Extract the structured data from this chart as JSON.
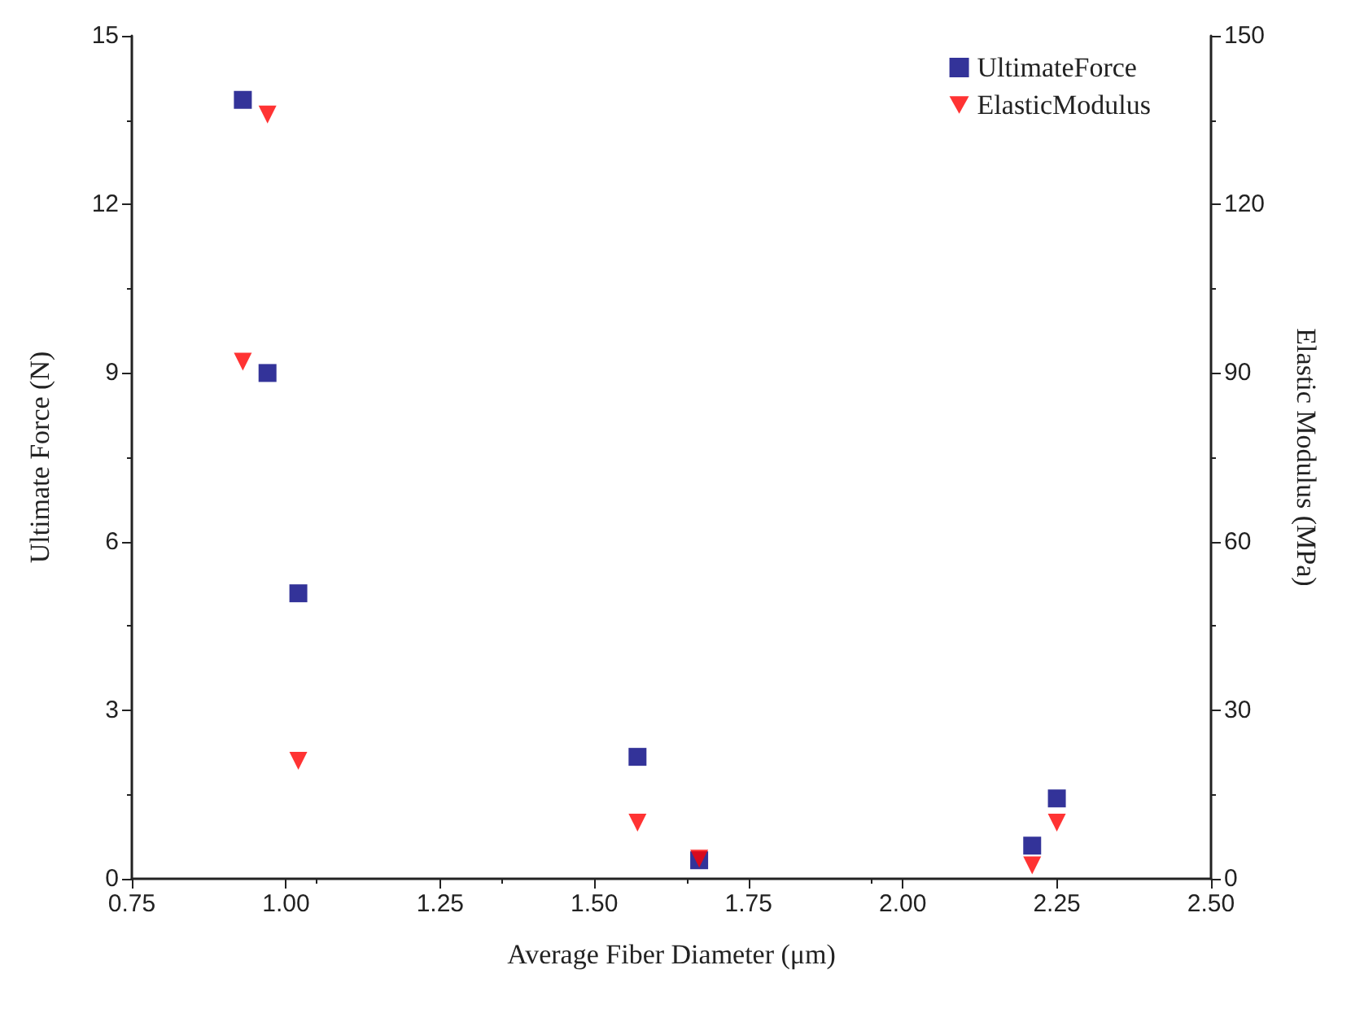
{
  "chart_data": {
    "type": "scatter",
    "xlabel": "Average Fiber Diameter (μm)",
    "ylabel": "Ultimate Force (N)",
    "y2label": "Elastic Modulus (MPa)",
    "xlim": [
      0.75,
      2.5
    ],
    "xticks": [
      0.75,
      {
        "value": 1,
        "label": "1.00"
      },
      1.25,
      {
        "value": 1.5,
        "label": "1.50"
      },
      1.75,
      {
        "value": 2,
        "label": "2.00"
      },
      2.25,
      {
        "value": 2.5,
        "label": "2.50"
      }
    ],
    "ylim": [
      0,
      15
    ],
    "yticks": [
      0,
      3,
      6,
      9,
      12,
      15
    ],
    "y2lim": [
      0,
      150
    ],
    "y2ticks": [
      0,
      30,
      60,
      90,
      120,
      150
    ],
    "grid": false,
    "legend": "top right",
    "series": [
      {
        "name": "UltimateForce",
        "color": "#000080",
        "marker": "square",
        "x": [
          0.93,
          0.97,
          1.02,
          1.57,
          1.67,
          2.21,
          2.25
        ],
        "values": [
          13.86,
          9.0,
          5.08,
          2.17,
          0.33,
          0.59,
          1.43
        ]
      },
      {
        "name": "ElasticModulus",
        "color": "#ff0000",
        "marker": "triangle",
        "axis": "y2",
        "x": [
          0.97,
          0.93,
          1.02,
          1.57,
          1.67,
          2.21,
          2.25
        ],
        "values": [
          136,
          92,
          21,
          10,
          3.6,
          2.4,
          10
        ]
      }
    ]
  }
}
